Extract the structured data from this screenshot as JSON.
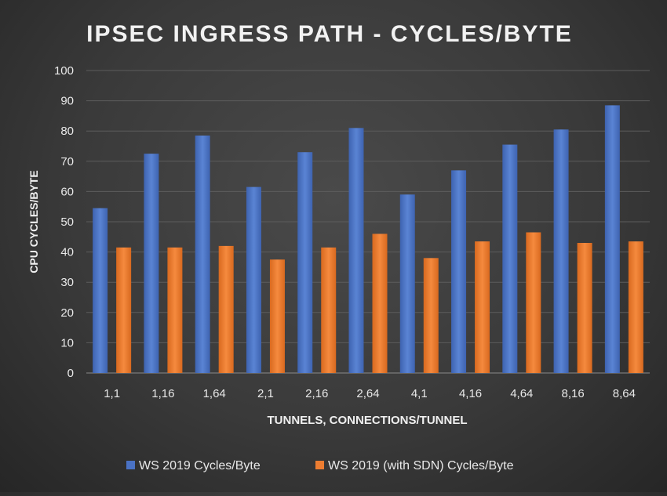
{
  "chart_data": {
    "type": "bar",
    "title": "IPSEC INGRESS PATH - CYCLES/BYTE",
    "xlabel": "TUNNELS, CONNECTIONS/TUNNEL",
    "ylabel": "CPU CYCLES/BYTE",
    "ylim": [
      0,
      100
    ],
    "yticks": [
      0,
      10,
      20,
      30,
      40,
      50,
      60,
      70,
      80,
      90,
      100
    ],
    "grid": true,
    "legend_position": "bottom",
    "categories": [
      "1,1",
      "1,16",
      "1,64",
      "2,1",
      "2,16",
      "2,64",
      "4,1",
      "4,16",
      "4,64",
      "8,16",
      "8,64"
    ],
    "series": [
      {
        "name": "WS 2019 Cycles/Byte",
        "color": "#4a72c4",
        "values": [
          54.5,
          72.5,
          78.5,
          61.5,
          73,
          81,
          59,
          67,
          75.5,
          80.5,
          88.5
        ]
      },
      {
        "name": "WS 2019 (with SDN) Cycles/Byte",
        "color": "#ed7d31",
        "values": [
          41.5,
          41.5,
          42,
          37.5,
          41.5,
          46,
          38,
          43.5,
          46.5,
          43,
          43.5
        ]
      }
    ]
  }
}
